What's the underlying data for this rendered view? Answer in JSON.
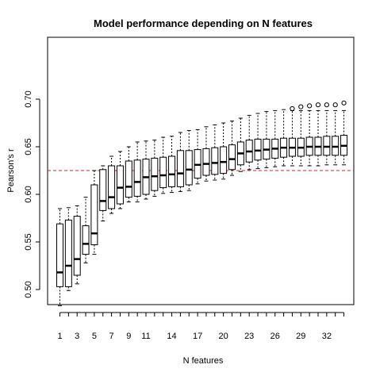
{
  "chart_data": {
    "type": "boxplot",
    "title": "Model performance depending on N features",
    "xlabel": "N features",
    "ylabel": "Pearson's r",
    "ylim": [
      0.48,
      0.7
    ],
    "yticks": [
      0.5,
      0.55,
      0.6,
      0.65,
      0.7
    ],
    "ytick_labels": [
      "0.50",
      "0.55",
      "0.60",
      "0.65",
      "0.70"
    ],
    "xticks": [
      1,
      3,
      5,
      7,
      9,
      11,
      14,
      17,
      20,
      23,
      26,
      29,
      32
    ],
    "xtick_labels": [
      "1",
      "3",
      "5",
      "7",
      "9",
      "11",
      "14",
      "17",
      "20",
      "23",
      "26",
      "29",
      "32"
    ],
    "n_categories": 34,
    "reference_line": {
      "y": 0.625,
      "color": "#d62728",
      "style": "dashed"
    },
    "grid": false,
    "boxes": [
      {
        "x": 1,
        "min": 0.483,
        "q1": 0.503,
        "median": 0.518,
        "q3": 0.569,
        "max": 0.585
      },
      {
        "x": 2,
        "min": 0.499,
        "q1": 0.503,
        "median": 0.525,
        "q3": 0.573,
        "max": 0.586
      },
      {
        "x": 3,
        "min": 0.506,
        "q1": 0.515,
        "median": 0.532,
        "q3": 0.577,
        "max": 0.588
      },
      {
        "x": 4,
        "min": 0.528,
        "q1": 0.537,
        "median": 0.548,
        "q3": 0.567,
        "max": 0.597
      },
      {
        "x": 5,
        "min": 0.537,
        "q1": 0.547,
        "median": 0.559,
        "q3": 0.61,
        "max": 0.625
      },
      {
        "x": 6,
        "min": 0.572,
        "q1": 0.583,
        "median": 0.593,
        "q3": 0.626,
        "max": 0.63
      },
      {
        "x": 7,
        "min": 0.58,
        "q1": 0.585,
        "median": 0.597,
        "q3": 0.63,
        "max": 0.64
      },
      {
        "x": 8,
        "min": 0.585,
        "q1": 0.59,
        "median": 0.607,
        "q3": 0.63,
        "max": 0.645
      },
      {
        "x": 9,
        "min": 0.592,
        "q1": 0.597,
        "median": 0.608,
        "q3": 0.635,
        "max": 0.65
      },
      {
        "x": 10,
        "min": 0.592,
        "q1": 0.598,
        "median": 0.613,
        "q3": 0.636,
        "max": 0.655
      },
      {
        "x": 11,
        "min": 0.595,
        "q1": 0.6,
        "median": 0.618,
        "q3": 0.637,
        "max": 0.656
      },
      {
        "x": 12,
        "min": 0.598,
        "q1": 0.604,
        "median": 0.619,
        "q3": 0.638,
        "max": 0.657
      },
      {
        "x": 13,
        "min": 0.601,
        "q1": 0.607,
        "median": 0.62,
        "q3": 0.639,
        "max": 0.66
      },
      {
        "x": 14,
        "min": 0.602,
        "q1": 0.608,
        "median": 0.621,
        "q3": 0.64,
        "max": 0.661
      },
      {
        "x": 15,
        "min": 0.603,
        "q1": 0.608,
        "median": 0.622,
        "q3": 0.646,
        "max": 0.665
      },
      {
        "x": 16,
        "min": 0.604,
        "q1": 0.61,
        "median": 0.626,
        "q3": 0.646,
        "max": 0.667
      },
      {
        "x": 17,
        "min": 0.611,
        "q1": 0.617,
        "median": 0.631,
        "q3": 0.647,
        "max": 0.668
      },
      {
        "x": 18,
        "min": 0.614,
        "q1": 0.62,
        "median": 0.632,
        "q3": 0.648,
        "max": 0.671
      },
      {
        "x": 19,
        "min": 0.615,
        "q1": 0.621,
        "median": 0.633,
        "q3": 0.649,
        "max": 0.673
      },
      {
        "x": 20,
        "min": 0.616,
        "q1": 0.622,
        "median": 0.634,
        "q3": 0.65,
        "max": 0.675
      },
      {
        "x": 21,
        "min": 0.62,
        "q1": 0.626,
        "median": 0.637,
        "q3": 0.652,
        "max": 0.677
      },
      {
        "x": 22,
        "min": 0.624,
        "q1": 0.631,
        "median": 0.643,
        "q3": 0.655,
        "max": 0.68
      },
      {
        "x": 23,
        "min": 0.626,
        "q1": 0.634,
        "median": 0.645,
        "q3": 0.657,
        "max": 0.683
      },
      {
        "x": 24,
        "min": 0.627,
        "q1": 0.636,
        "median": 0.646,
        "q3": 0.658,
        "max": 0.685
      },
      {
        "x": 25,
        "min": 0.628,
        "q1": 0.637,
        "median": 0.647,
        "q3": 0.658,
        "max": 0.687
      },
      {
        "x": 26,
        "min": 0.629,
        "q1": 0.638,
        "median": 0.648,
        "q3": 0.658,
        "max": 0.688
      },
      {
        "x": 27,
        "min": 0.63,
        "q1": 0.639,
        "median": 0.649,
        "q3": 0.659,
        "max": 0.689
      },
      {
        "x": 28,
        "min": 0.63,
        "q1": 0.64,
        "median": 0.649,
        "q3": 0.659,
        "max": 0.688,
        "outliers": [
          0.69
        ]
      },
      {
        "x": 29,
        "min": 0.63,
        "q1": 0.64,
        "median": 0.649,
        "q3": 0.659,
        "max": 0.688,
        "outliers": [
          0.692
        ]
      },
      {
        "x": 30,
        "min": 0.63,
        "q1": 0.641,
        "median": 0.65,
        "q3": 0.66,
        "max": 0.688,
        "outliers": [
          0.693
        ]
      },
      {
        "x": 31,
        "min": 0.63,
        "q1": 0.641,
        "median": 0.65,
        "q3": 0.66,
        "max": 0.688,
        "outliers": [
          0.694
        ]
      },
      {
        "x": 32,
        "min": 0.631,
        "q1": 0.641,
        "median": 0.65,
        "q3": 0.661,
        "max": 0.688,
        "outliers": [
          0.694
        ]
      },
      {
        "x": 33,
        "min": 0.631,
        "q1": 0.641,
        "median": 0.65,
        "q3": 0.661,
        "max": 0.688,
        "outliers": [
          0.694
        ]
      },
      {
        "x": 34,
        "min": 0.631,
        "q1": 0.641,
        "median": 0.651,
        "q3": 0.662,
        "max": 0.688,
        "outliers": [
          0.696
        ]
      }
    ]
  }
}
